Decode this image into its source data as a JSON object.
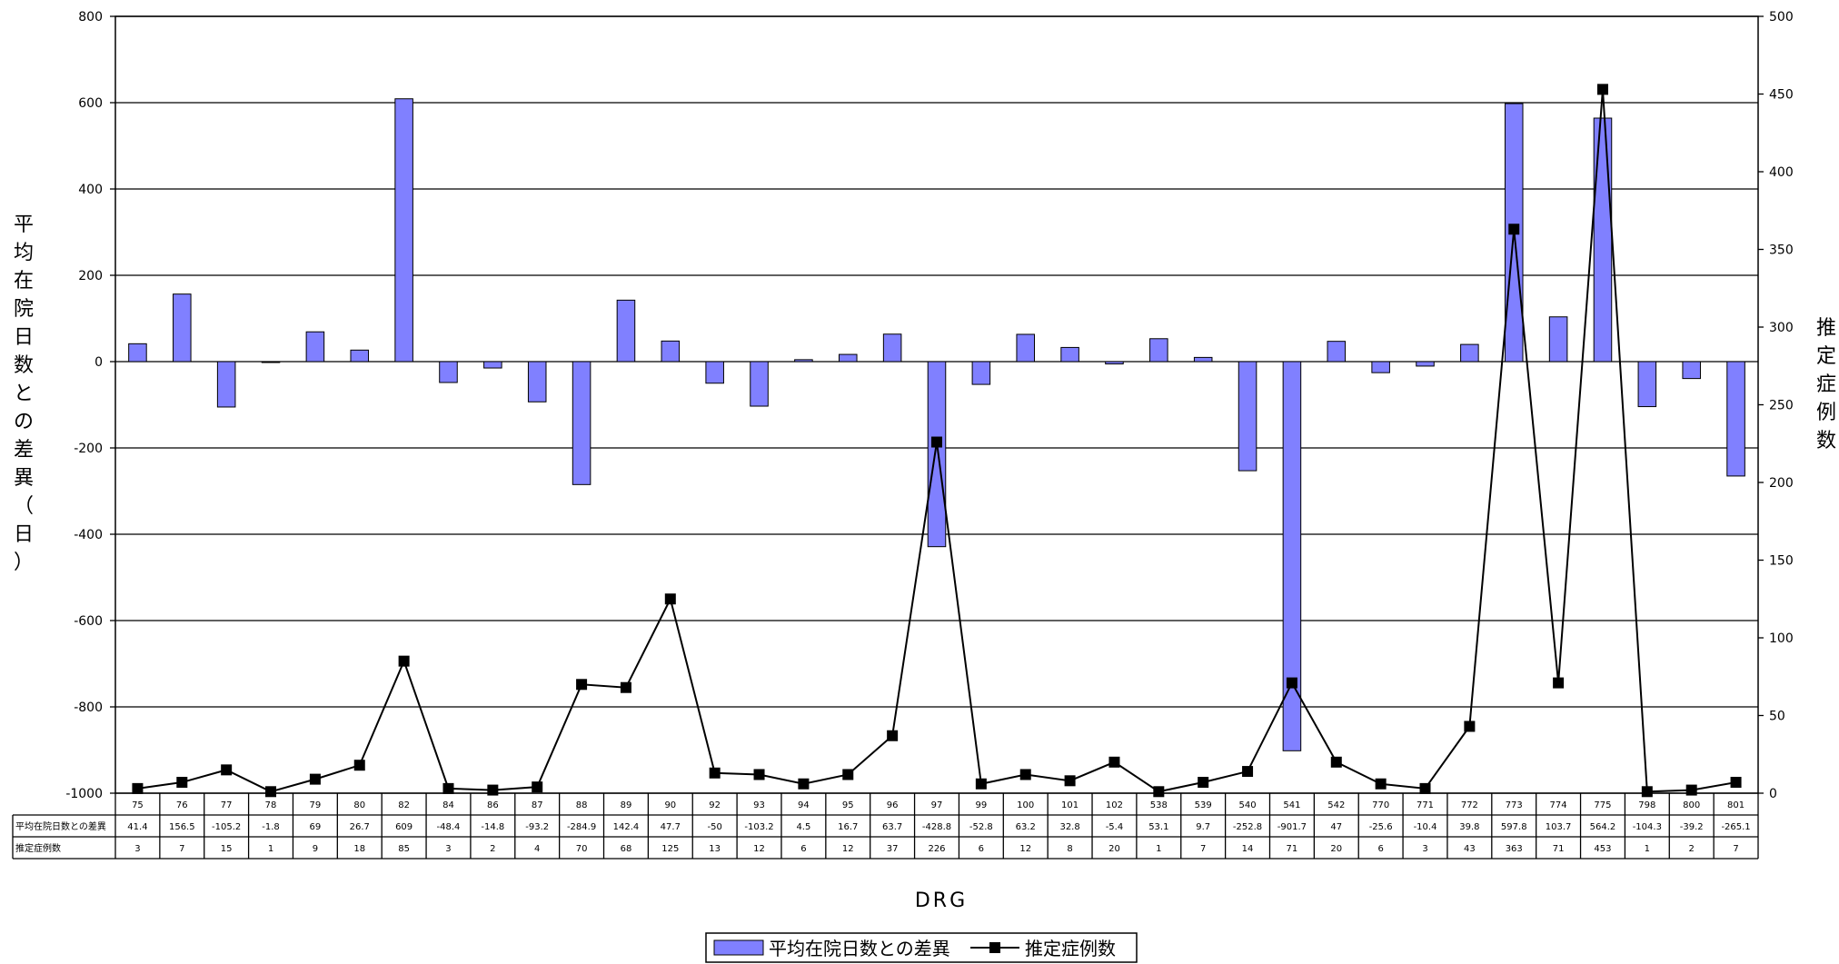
{
  "chart_data": {
    "type": "bar",
    "xlabel": "DRG",
    "ylabel_left": "平均在院日数との差異（日）",
    "ylabel_right": "推定症例数",
    "ylim_left": [
      -1000,
      800
    ],
    "yticks_left": [
      800,
      600,
      400,
      200,
      0,
      -200,
      -400,
      -600,
      -800,
      -1000
    ],
    "ylim_right": [
      0,
      500
    ],
    "yticks_right": [
      500,
      450,
      400,
      350,
      300,
      250,
      200,
      150,
      100,
      50,
      0
    ],
    "grid": true,
    "legend_position": "bottom-center",
    "categories": [
      "75",
      "76",
      "77",
      "78",
      "79",
      "80",
      "82",
      "84",
      "86",
      "87",
      "88",
      "89",
      "90",
      "92",
      "93",
      "94",
      "95",
      "96",
      "97",
      "99",
      "100",
      "101",
      "102",
      "538",
      "539",
      "540",
      "541",
      "542",
      "770",
      "771",
      "772",
      "773",
      "774",
      "775",
      "798",
      "800",
      "801"
    ],
    "series": [
      {
        "name": "平均在院日数との差異",
        "type": "bar",
        "axis": "left",
        "color": "#8080ff",
        "values": [
          41.4,
          156.5,
          -105.2,
          -1.8,
          69,
          26.7,
          609,
          -48.4,
          -14.8,
          -93.2,
          -284.9,
          142.4,
          47.7,
          -50,
          -103.2,
          4.5,
          16.7,
          63.7,
          -428.8,
          -52.8,
          63.2,
          32.8,
          -5.4,
          53.1,
          9.7,
          -252.8,
          -901.7,
          47,
          -25.6,
          -10.4,
          39.8,
          597.8,
          103.7,
          564.2,
          -104.3,
          -39.2,
          -265.1
        ]
      },
      {
        "name": "推定症例数",
        "type": "line",
        "axis": "right",
        "color": "#000000",
        "values": [
          3,
          7,
          15,
          1,
          9,
          18,
          85,
          3,
          2,
          4,
          70,
          68,
          125,
          13,
          12,
          6,
          12,
          37,
          226,
          6,
          12,
          8,
          20,
          1,
          7,
          14,
          71,
          20,
          6,
          3,
          43,
          363,
          71,
          453,
          1,
          2,
          7
        ]
      }
    ],
    "table": {
      "row_labels": [
        "平均在院日数との差異",
        "推定症例数"
      ],
      "rows": [
        [
          "41.4",
          "156.5",
          "-105.2",
          "-1.8",
          "69",
          "26.7",
          "609",
          "-48.4",
          "-14.8",
          "-93.2",
          "-284.9",
          "142.4",
          "47.7",
          "-50",
          "-103.2",
          "4.5",
          "16.7",
          "63.7",
          "-428.8",
          "-52.8",
          "63.2",
          "32.8",
          "-5.4",
          "53.1",
          "9.7",
          "-252.8",
          "-901.7",
          "47",
          "-25.6",
          "-10.4",
          "39.8",
          "597.8",
          "103.7",
          "564.2",
          "-104.3",
          "-39.2",
          "-265.1"
        ],
        [
          "3",
          "7",
          "15",
          "1",
          "9",
          "18",
          "85",
          "3",
          "2",
          "4",
          "70",
          "68",
          "125",
          "13",
          "12",
          "6",
          "12",
          "37",
          "226",
          "6",
          "12",
          "8",
          "20",
          "1",
          "7",
          "14",
          "71",
          "20",
          "6",
          "3",
          "43",
          "363",
          "71",
          "453",
          "1",
          "2",
          "7"
        ]
      ]
    }
  }
}
